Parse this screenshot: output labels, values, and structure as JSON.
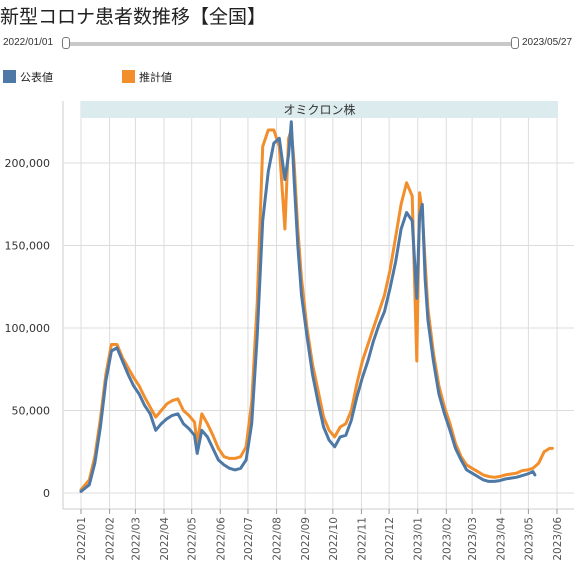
{
  "title": "新型コロナ患者数推移【全国】",
  "range": {
    "start": "2022/01/01",
    "end": "2023/05/27"
  },
  "colors": {
    "official": "#4e79a7",
    "estimated": "#f28e2b",
    "band": "#dcebed",
    "grid": "#dcdcdc"
  },
  "chart_data": {
    "type": "line",
    "title": "",
    "xlabel": "",
    "ylabel": "",
    "ylim": [
      0,
      230000
    ],
    "y_ticks": [
      0,
      50000,
      100000,
      150000,
      200000
    ],
    "y_tick_labels": [
      "0",
      "50,000",
      "100,000",
      "150,000",
      "200,000"
    ],
    "x_tick_labels": [
      "2022/01",
      "2022/02",
      "2022/03",
      "2022/04",
      "2022/05",
      "2022/06",
      "2022/07",
      "2022/08",
      "2022/09",
      "2022/10",
      "2022/11",
      "2022/12",
      "2023/01",
      "2023/02",
      "2023/03",
      "2023/04",
      "2023/05",
      "2023/06"
    ],
    "band_label": "オミクロン株",
    "legend": [
      "公表値",
      "推計値"
    ],
    "series": [
      {
        "name": "公表値",
        "color": "#4e79a7",
        "x": [
          "2022/01/01",
          "2022/01/10",
          "2022/01/16",
          "2022/01/22",
          "2022/01/28",
          "2022/02/03",
          "2022/02/09",
          "2022/02/15",
          "2022/02/21",
          "2022/02/27",
          "2022/03/05",
          "2022/03/11",
          "2022/03/17",
          "2022/03/23",
          "2022/03/29",
          "2022/04/04",
          "2022/04/10",
          "2022/04/16",
          "2022/04/22",
          "2022/04/28",
          "2022/05/04",
          "2022/05/07",
          "2022/05/12",
          "2022/05/18",
          "2022/05/24",
          "2022/05/30",
          "2022/06/05",
          "2022/06/11",
          "2022/06/17",
          "2022/06/23",
          "2022/06/29",
          "2022/07/05",
          "2022/07/11",
          "2022/07/17",
          "2022/07/23",
          "2022/07/29",
          "2022/08/04",
          "2022/08/10",
          "2022/08/14",
          "2022/08/17",
          "2022/08/20",
          "2022/08/24",
          "2022/08/28",
          "2022/09/03",
          "2022/09/09",
          "2022/09/15",
          "2022/09/21",
          "2022/09/27",
          "2022/10/03",
          "2022/10/09",
          "2022/10/15",
          "2022/10/21",
          "2022/10/27",
          "2022/11/02",
          "2022/11/08",
          "2022/11/14",
          "2022/11/20",
          "2022/11/26",
          "2022/12/02",
          "2022/12/08",
          "2022/12/14",
          "2022/12/20",
          "2022/12/26",
          "2022/12/31",
          "2023/01/03",
          "2023/01/06",
          "2023/01/09",
          "2023/01/12",
          "2023/01/18",
          "2023/01/24",
          "2023/01/30",
          "2023/02/05",
          "2023/02/11",
          "2023/02/17",
          "2023/02/23",
          "2023/03/01",
          "2023/03/07",
          "2023/03/13",
          "2023/03/19",
          "2023/03/25",
          "2023/03/31",
          "2023/04/06",
          "2023/04/12",
          "2023/04/18",
          "2023/04/24",
          "2023/04/30",
          "2023/05/06",
          "2023/05/08"
        ],
        "y": [
          1000,
          5000,
          18000,
          40000,
          68000,
          86000,
          88000,
          80000,
          72000,
          65000,
          60000,
          53000,
          48000,
          38000,
          42000,
          45000,
          47000,
          48000,
          42000,
          39000,
          35000,
          24000,
          38000,
          34000,
          27000,
          20000,
          17000,
          15000,
          14000,
          15000,
          20000,
          42000,
          95000,
          165000,
          195000,
          212000,
          215000,
          190000,
          205000,
          225000,
          190000,
          150000,
          120000,
          95000,
          72000,
          55000,
          40000,
          32000,
          28000,
          34000,
          35000,
          44000,
          58000,
          70000,
          80000,
          92000,
          102000,
          110000,
          124000,
          140000,
          160000,
          170000,
          165000,
          118000,
          168000,
          175000,
          130000,
          105000,
          80000,
          60000,
          48000,
          38000,
          27000,
          20000,
          14000,
          12000,
          10000,
          8000,
          7000,
          7000,
          7500,
          8500,
          9000,
          9500,
          10500,
          11500,
          13000,
          11000
        ]
      },
      {
        "name": "推計値",
        "color": "#f28e2b",
        "x": [
          "2022/01/01",
          "2022/01/10",
          "2022/01/16",
          "2022/01/22",
          "2022/01/28",
          "2022/02/03",
          "2022/02/09",
          "2022/02/15",
          "2022/02/21",
          "2022/02/27",
          "2022/03/05",
          "2022/03/11",
          "2022/03/17",
          "2022/03/23",
          "2022/03/29",
          "2022/04/04",
          "2022/04/10",
          "2022/04/16",
          "2022/04/22",
          "2022/04/28",
          "2022/05/04",
          "2022/05/07",
          "2022/05/12",
          "2022/05/18",
          "2022/05/24",
          "2022/05/30",
          "2022/06/05",
          "2022/06/11",
          "2022/06/17",
          "2022/06/23",
          "2022/06/29",
          "2022/07/05",
          "2022/07/11",
          "2022/07/17",
          "2022/07/23",
          "2022/07/29",
          "2022/08/04",
          "2022/08/10",
          "2022/08/14",
          "2022/08/17",
          "2022/08/20",
          "2022/08/24",
          "2022/08/28",
          "2022/09/03",
          "2022/09/09",
          "2022/09/15",
          "2022/09/21",
          "2022/09/27",
          "2022/10/03",
          "2022/10/09",
          "2022/10/15",
          "2022/10/21",
          "2022/10/27",
          "2022/11/02",
          "2022/11/08",
          "2022/11/14",
          "2022/11/20",
          "2022/11/26",
          "2022/12/02",
          "2022/12/08",
          "2022/12/14",
          "2022/12/20",
          "2022/12/26",
          "2022/12/31",
          "2023/01/03",
          "2023/01/06",
          "2023/01/09",
          "2023/01/12",
          "2023/01/18",
          "2023/01/24",
          "2023/01/30",
          "2023/02/05",
          "2023/02/11",
          "2023/02/17",
          "2023/02/23",
          "2023/03/01",
          "2023/03/07",
          "2023/03/13",
          "2023/03/19",
          "2023/03/25",
          "2023/03/31",
          "2023/04/06",
          "2023/04/12",
          "2023/04/18",
          "2023/04/24",
          "2023/04/30",
          "2023/05/06",
          "2023/05/12",
          "2023/05/18",
          "2023/05/24",
          "2023/05/27"
        ],
        "y": [
          2000,
          8000,
          22000,
          45000,
          72000,
          90000,
          90000,
          82000,
          76000,
          70000,
          65000,
          58000,
          52000,
          46000,
          50000,
          54000,
          56000,
          57000,
          50000,
          47000,
          43000,
          30000,
          48000,
          42000,
          35000,
          27000,
          22000,
          21000,
          21000,
          22000,
          28000,
          55000,
          115000,
          210000,
          220000,
          220000,
          210000,
          160000,
          215000,
          220000,
          200000,
          160000,
          130000,
          100000,
          78000,
          62000,
          46000,
          38000,
          34000,
          40000,
          42000,
          50000,
          66000,
          80000,
          90000,
          100000,
          110000,
          120000,
          135000,
          155000,
          175000,
          188000,
          180000,
          80000,
          182000,
          170000,
          140000,
          112000,
          85000,
          65000,
          52000,
          42000,
          30000,
          22000,
          17000,
          15000,
          13000,
          11000,
          10000,
          9500,
          10000,
          11000,
          11500,
          12000,
          13500,
          14000,
          15000,
          18000,
          25000,
          27000,
          27000
        ]
      }
    ]
  }
}
